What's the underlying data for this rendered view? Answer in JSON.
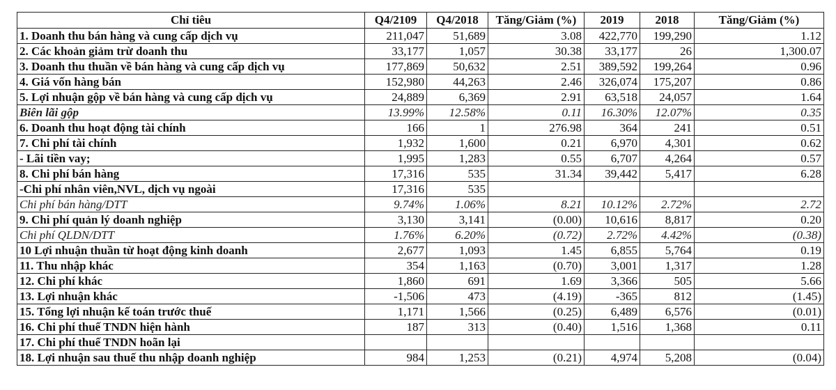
{
  "table": {
    "headers": [
      "Chỉ tiêu",
      "Q4/2109",
      "Q4/2018",
      "Tăng/Giảm (%)",
      "2019",
      "2018",
      "Tăng/Giảm (%)"
    ],
    "rows": [
      {
        "label": "1. Doanh thu bán hàng và cung cấp dịch vụ",
        "q4_2019": "211,047",
        "q4_2018": "51,689",
        "chg_q": "3.08",
        "y2019": "422,770",
        "y2018": "199,290",
        "chg_y": "1.12"
      },
      {
        "label": "2. Các khoản giảm trừ doanh thu",
        "q4_2019": "33,177",
        "q4_2018": "1,057",
        "chg_q": "30.38",
        "y2019": "33,177",
        "y2018": "26",
        "chg_y": "1,300.07"
      },
      {
        "label": "3. Doanh thu thuần về bán hàng và cung cấp dịch vụ",
        "q4_2019": "177,869",
        "q4_2018": "50,632",
        "chg_q": "2.51",
        "y2019": "389,592",
        "y2018": "199,264",
        "chg_y": "0.96"
      },
      {
        "label": "4. Giá vốn hàng bán",
        "q4_2019": "152,980",
        "q4_2018": "44,263",
        "chg_q": "2.46",
        "y2019": "326,074",
        "y2018": "175,207",
        "chg_y": "0.86"
      },
      {
        "label": "5. Lợi nhuận gộp về bán hàng và cung cấp dịch vụ",
        "q4_2019": "24,889",
        "q4_2018": "6,369",
        "chg_q": "2.91",
        "y2019": "63,518",
        "y2018": "24,057",
        "chg_y": "1.64"
      },
      {
        "label": "Biên lãi gộp",
        "q4_2019": "13.99%",
        "q4_2018": "12.58%",
        "chg_q": "0.11",
        "y2019": "16.30%",
        "y2018": "12.07%",
        "chg_y": "0.35",
        "style": "italic"
      },
      {
        "label": "6. Doanh thu hoạt động tài chính",
        "q4_2019": "166",
        "q4_2018": "1",
        "chg_q": "276.98",
        "y2019": "364",
        "y2018": "241",
        "chg_y": "0.51"
      },
      {
        "label": "7. Chi phí tài chính",
        "q4_2019": "1,932",
        "q4_2018": "1,600",
        "chg_q": "0.21",
        "y2019": "6,970",
        "y2018": "4,301",
        "chg_y": "0.62"
      },
      {
        "label": "- Lãi tiền vay;",
        "q4_2019": "1,995",
        "q4_2018": "1,283",
        "chg_q": "0.55",
        "y2019": "6,707",
        "y2018": "4,264",
        "chg_y": "0.57"
      },
      {
        "label": "8. Chi phí bán hàng",
        "q4_2019": "17,316",
        "q4_2018": "535",
        "chg_q": "31.34",
        "y2019": "39,442",
        "y2018": "5,417",
        "chg_y": "6.28"
      },
      {
        "label": "-Chi phí nhân viên,NVL, dịch vụ ngoài",
        "q4_2019": "17,316",
        "q4_2018": "535",
        "chg_q": "",
        "y2019": "",
        "y2018": "",
        "chg_y": ""
      },
      {
        "label": "Chi phí bán hàng/DTT",
        "q4_2019": "9.74%",
        "q4_2018": "1.06%",
        "chg_q": "8.21",
        "y2019": "10.12%",
        "y2018": "2.72%",
        "chg_y": "2.72",
        "style": "italic-plain"
      },
      {
        "label": "9. Chi phí quản lý doanh nghiệp",
        "q4_2019": "3,130",
        "q4_2018": "3,141",
        "chg_q": "(0.00)",
        "y2019": "10,616",
        "y2018": "8,817",
        "chg_y": "0.20"
      },
      {
        "label": "Chi phí QLDN/DTT",
        "q4_2019": "1.76%",
        "q4_2018": "6.20%",
        "chg_q": "(0.72)",
        "y2019": "2.72%",
        "y2018": "4.42%",
        "chg_y": "(0.38)",
        "style": "italic-plain"
      },
      {
        "label": "10 Lợi nhuận thuần từ hoạt động kinh doanh",
        "q4_2019": "2,677",
        "q4_2018": "1,093",
        "chg_q": "1.45",
        "y2019": "6,855",
        "y2018": "5,764",
        "chg_y": "0.19"
      },
      {
        "label": "11. Thu nhập khác",
        "q4_2019": "354",
        "q4_2018": "1,163",
        "chg_q": "(0.70)",
        "y2019": "3,001",
        "y2018": "1,317",
        "chg_y": "1.28"
      },
      {
        "label": "12. Chi phí khác",
        "q4_2019": "1,860",
        "q4_2018": "691",
        "chg_q": "1.69",
        "y2019": "3,366",
        "y2018": "505",
        "chg_y": "5.66"
      },
      {
        "label": "13. Lợi nhuận khác",
        "q4_2019": "-1,506",
        "q4_2018": "473",
        "chg_q": "(4.19)",
        "y2019": "-365",
        "y2018": "812",
        "chg_y": "(1.45)"
      },
      {
        "label": "15. Tổng lợi nhuận kế toán trước thuế",
        "q4_2019": "1,171",
        "q4_2018": "1,566",
        "chg_q": "(0.25)",
        "y2019": "6,489",
        "y2018": "6,576",
        "chg_y": "(0.01)"
      },
      {
        "label": "16. Chi phí thuế TNDN hiện hành",
        "q4_2019": "187",
        "q4_2018": "313",
        "chg_q": "(0.40)",
        "y2019": "1,516",
        "y2018": "1,368",
        "chg_y": "0.11"
      },
      {
        "label": "17. Chi phí thuế TNDN hoãn lại",
        "q4_2019": "",
        "q4_2018": "",
        "chg_q": "",
        "y2019": "",
        "y2018": "",
        "chg_y": ""
      },
      {
        "label": "18. Lợi nhuận sau thuế thu nhập doanh nghiệp",
        "q4_2019": "984",
        "q4_2018": "1,253",
        "chg_q": "(0.21)",
        "y2019": "4,974",
        "y2018": "5,208",
        "chg_y": "(0.04)"
      }
    ]
  }
}
